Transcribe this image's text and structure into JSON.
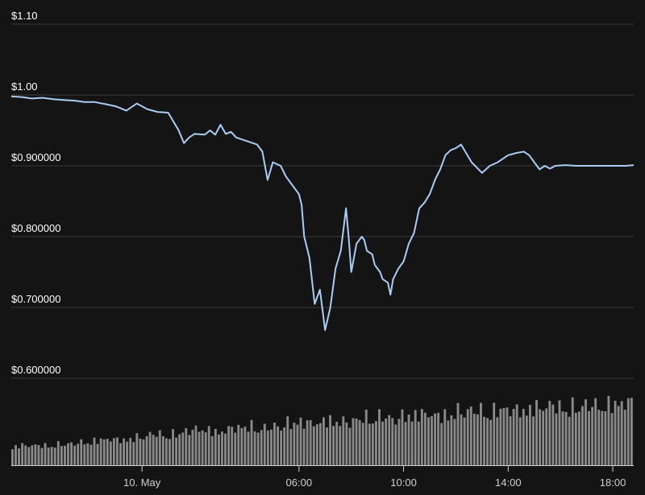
{
  "chart_data": {
    "type": "line",
    "title": "",
    "xlabel": "",
    "ylabel": "",
    "y_tick_labels": [
      {
        "value": 1.1,
        "label": "$1.10"
      },
      {
        "value": 1.0,
        "label": "$1.00"
      },
      {
        "value": 0.9,
        "label": "$0.900000"
      },
      {
        "value": 0.8,
        "label": "$0.800000"
      },
      {
        "value": 0.7,
        "label": "$0.700000"
      },
      {
        "value": 0.6,
        "label": "$0.600000"
      }
    ],
    "ylim": [
      0.6,
      1.1
    ],
    "x_tick_labels": [
      {
        "label": "10. May",
        "hour": 0
      },
      {
        "label": "06:00",
        "hour": 6
      },
      {
        "label": "10:00",
        "hour": 10
      },
      {
        "label": "14:00",
        "hour": 14
      },
      {
        "label": "18:00",
        "hour": 18
      }
    ],
    "xlim_hours": [
      -5.0,
      18.8
    ],
    "grid": true,
    "colors": {
      "line": "#a9cdf5",
      "volume": "#8a8a8a",
      "grid": "#3a3a3a",
      "background": "#141414"
    },
    "series": [
      {
        "x_hours": [
          -5.0,
          -4.6,
          -4.2,
          -3.8,
          -3.4,
          -3.0,
          -2.6,
          -2.2,
          -1.8,
          -1.4,
          -1.0,
          -0.6,
          -0.2,
          0.2,
          0.6,
          1.0,
          1.4,
          1.6,
          1.8,
          2.0,
          2.4,
          2.6,
          2.8,
          3.0,
          3.2,
          3.4,
          3.6,
          4.0,
          4.4,
          4.6,
          4.8,
          5.0,
          5.3,
          5.5,
          5.8,
          6.0,
          6.1,
          6.2,
          6.4,
          6.6,
          6.8,
          7.0,
          7.2,
          7.4,
          7.6,
          7.8,
          7.9,
          8.0,
          8.2,
          8.4,
          8.5,
          8.6,
          8.8,
          8.9,
          9.1,
          9.2,
          9.4,
          9.5,
          9.6,
          9.8,
          10.0,
          10.2,
          10.4,
          10.6,
          10.8,
          11.0,
          11.2,
          11.4,
          11.6,
          11.8,
          12.0,
          12.2,
          12.6,
          13.0,
          13.3,
          13.6,
          14.0,
          14.3,
          14.6,
          14.8,
          15.0,
          15.2,
          15.4,
          15.6,
          15.8,
          16.2,
          16.6,
          17.0,
          17.4,
          17.8,
          18.2,
          18.5,
          18.8
        ],
        "y": [
          0.998,
          0.997,
          0.995,
          0.996,
          0.994,
          0.993,
          0.992,
          0.99,
          0.99,
          0.987,
          0.984,
          0.978,
          0.988,
          0.98,
          0.976,
          0.975,
          0.95,
          0.932,
          0.94,
          0.945,
          0.944,
          0.95,
          0.944,
          0.958,
          0.945,
          0.948,
          0.94,
          0.935,
          0.93,
          0.92,
          0.88,
          0.905,
          0.9,
          0.885,
          0.87,
          0.86,
          0.845,
          0.8,
          0.77,
          0.705,
          0.725,
          0.668,
          0.7,
          0.755,
          0.78,
          0.84,
          0.8,
          0.75,
          0.79,
          0.8,
          0.795,
          0.78,
          0.775,
          0.76,
          0.75,
          0.74,
          0.735,
          0.718,
          0.74,
          0.755,
          0.765,
          0.79,
          0.805,
          0.84,
          0.848,
          0.86,
          0.88,
          0.895,
          0.915,
          0.922,
          0.925,
          0.93,
          0.905,
          0.89,
          0.9,
          0.905,
          0.915,
          0.918,
          0.92,
          0.915,
          0.905,
          0.895,
          0.9,
          0.896,
          0.9,
          0.901,
          0.9,
          0.9,
          0.9,
          0.9,
          0.9,
          0.9,
          0.901
        ]
      }
    ],
    "volume": {
      "note": "relative bar heights (0-1) of unlabeled volume histogram",
      "values": [
        0.3,
        0.32,
        0.31,
        0.33,
        0.35,
        0.38,
        0.42,
        0.4,
        0.45,
        0.5,
        0.48,
        0.55,
        0.58,
        0.52,
        0.6,
        0.62,
        0.58,
        0.65,
        0.7,
        0.66,
        0.72,
        0.68,
        0.75,
        0.78,
        0.74,
        0.8,
        0.82,
        0.78,
        0.85,
        0.88,
        0.84,
        0.9,
        0.86,
        0.92,
        0.95,
        0.9,
        0.96,
        0.94,
        0.98,
        1.0
      ]
    }
  }
}
